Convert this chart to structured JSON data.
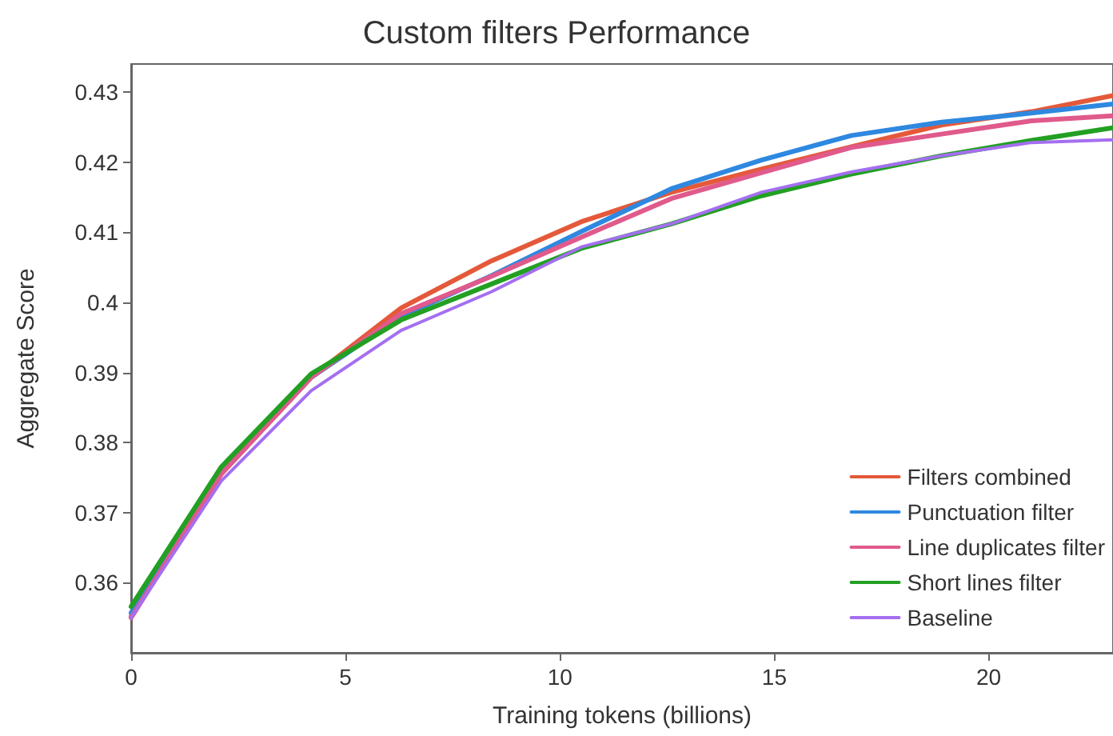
{
  "chart_data": {
    "type": "line",
    "title": "Custom filters Performance",
    "xlabel": "Training tokens (billions)",
    "ylabel": "Aggregate Score",
    "x": [
      0,
      2.1,
      4.2,
      6.3,
      8.4,
      10.5,
      12.6,
      14.7,
      16.8,
      18.9,
      21,
      22.9
    ],
    "series": [
      {
        "name": "Filters combined",
        "color": "#e4593a",
        "values": [
          0.3552,
          0.3755,
          0.3893,
          0.3992,
          0.4059,
          0.4115,
          0.4157,
          0.419,
          0.4222,
          0.4253,
          0.4272,
          0.4295
        ]
      },
      {
        "name": "Punctuation filter",
        "color": "#2e88e0",
        "values": [
          0.3557,
          0.3757,
          0.3893,
          0.398,
          0.4038,
          0.4101,
          0.4162,
          0.4203,
          0.4238,
          0.4257,
          0.427,
          0.4283
        ]
      },
      {
        "name": "Line duplicates filter",
        "color": "#e05a8c",
        "values": [
          0.355,
          0.3755,
          0.3893,
          0.3984,
          0.4037,
          0.4093,
          0.4148,
          0.4185,
          0.4221,
          0.424,
          0.4259,
          0.4266
        ]
      },
      {
        "name": "Short lines filter",
        "color": "#22a022",
        "values": [
          0.3566,
          0.3765,
          0.3898,
          0.3975,
          0.4026,
          0.4077,
          0.4112,
          0.4152,
          0.4183,
          0.4209,
          0.4231,
          0.4249
        ]
      },
      {
        "name": "Baseline",
        "color": "#a46ff0",
        "values": [
          0.355,
          0.3745,
          0.3874,
          0.396,
          0.4015,
          0.4079,
          0.4112,
          0.4157,
          0.4186,
          0.4209,
          0.4228,
          0.4232
        ]
      }
    ],
    "xlim": [
      0,
      22.9
    ],
    "xticks": [
      0,
      5,
      10,
      15,
      20
    ],
    "ylim": [
      0.35,
      0.434
    ],
    "yticks": [
      0.36,
      0.37,
      0.38,
      0.39,
      0.4,
      0.41,
      0.42,
      0.43
    ],
    "grid": false,
    "legend": "bottom right",
    "marker": "none",
    "line_style": "solid"
  }
}
